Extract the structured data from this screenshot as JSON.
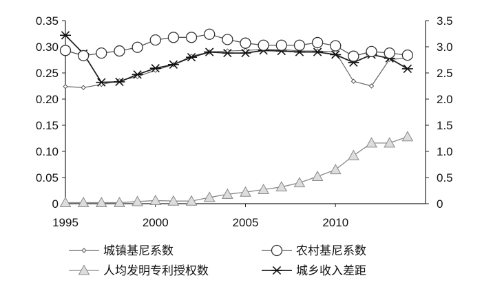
{
  "chart_data": {
    "type": "line",
    "title": "",
    "xlabel": "",
    "ylabel": "",
    "x": [
      1995,
      1996,
      1997,
      1998,
      1999,
      2000,
      2001,
      2002,
      2003,
      2004,
      2005,
      2006,
      2007,
      2008,
      2009,
      2010,
      2011,
      2012,
      2013,
      2014
    ],
    "xticks": [
      1995,
      2000,
      2005,
      2010
    ],
    "xlim": [
      1995,
      2015
    ],
    "ylim_left": [
      0,
      0.35
    ],
    "ylim_right": [
      0,
      3.5
    ],
    "yticks_left": [
      "0",
      "0.05",
      "0.10",
      "0.15",
      "0.20",
      "0.25",
      "0.30",
      "0.35"
    ],
    "yticks_right": [
      "0",
      "0.5",
      "1.0",
      "1.5",
      "2.0",
      "2.5",
      "3.0",
      "3.5"
    ],
    "series": [
      {
        "name": "城镇基尼系数",
        "axis": "left",
        "marker": "small-diamond",
        "values": [
          0.224,
          0.222,
          0.228,
          0.235,
          0.243,
          0.255,
          0.266,
          0.282,
          0.29,
          0.292,
          0.293,
          0.295,
          0.295,
          0.292,
          0.292,
          0.29,
          0.234,
          0.225,
          0.276,
          0.278
        ]
      },
      {
        "name": "农村基尼系数",
        "axis": "left",
        "marker": "circle",
        "values": [
          0.293,
          0.283,
          0.288,
          0.292,
          0.299,
          0.313,
          0.318,
          0.318,
          0.324,
          0.314,
          0.307,
          0.303,
          0.303,
          0.303,
          0.308,
          0.302,
          0.282,
          0.291,
          0.288,
          0.284
        ]
      },
      {
        "name": "人均发明专利授权数",
        "axis": "right",
        "marker": "triangle",
        "values": [
          0.02,
          0.02,
          0.02,
          0.02,
          0.04,
          0.06,
          0.05,
          0.05,
          0.12,
          0.18,
          0.22,
          0.27,
          0.32,
          0.4,
          0.52,
          0.65,
          0.92,
          1.16,
          1.16,
          1.28
        ]
      },
      {
        "name": "城乡收入差距",
        "axis": "right",
        "marker": "asterisk",
        "values": [
          3.22,
          2.87,
          2.32,
          2.33,
          2.47,
          2.59,
          2.66,
          2.8,
          2.9,
          2.88,
          2.88,
          2.93,
          2.92,
          2.9,
          2.9,
          2.85,
          2.7,
          2.85,
          2.78,
          2.58
        ]
      }
    ],
    "legend_position": "bottom",
    "grid": false
  }
}
